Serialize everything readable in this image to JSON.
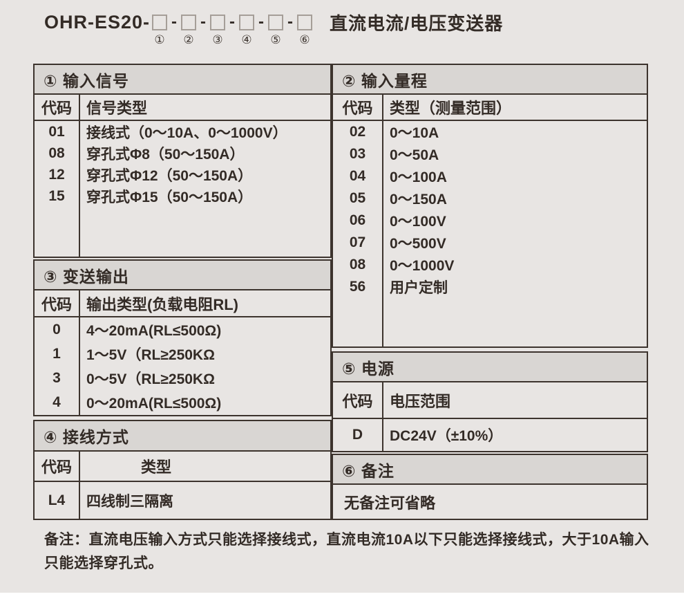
{
  "title": {
    "model_prefix": "OHR-ES20-",
    "separator": "-",
    "markers": [
      "①",
      "②",
      "③",
      "④",
      "⑤",
      "⑥"
    ],
    "product_name": "直流电流/电压变送器"
  },
  "sections": {
    "input_signal": {
      "title": "① 输入信号",
      "code_header": "代码",
      "type_header": "信号类型",
      "rows": [
        {
          "code": "01",
          "type": "接线式（0～10A、0～1000V）"
        },
        {
          "code": "08",
          "type": "穿孔式Φ8（50～150A）"
        },
        {
          "code": "12",
          "type": "穿孔式Φ12（50～150A）"
        },
        {
          "code": "15",
          "type": "穿孔式Φ15（50～150A）"
        }
      ]
    },
    "input_range": {
      "title": "② 输入量程",
      "code_header": "代码",
      "type_header": "类型（测量范围）",
      "rows": [
        {
          "code": "02",
          "type": "0～10A"
        },
        {
          "code": "03",
          "type": "0～50A"
        },
        {
          "code": "04",
          "type": "0～100A"
        },
        {
          "code": "05",
          "type": "0～150A"
        },
        {
          "code": "06",
          "type": "0～100V"
        },
        {
          "code": "07",
          "type": "0～500V"
        },
        {
          "code": "08",
          "type": "0～1000V"
        },
        {
          "code": "56",
          "type": "用户定制"
        }
      ]
    },
    "output": {
      "title": "③ 变送输出",
      "code_header": "代码",
      "type_header": "输出类型(负载电阻RL)",
      "rows": [
        {
          "code": "0",
          "type": "4～20mA(RL≤500Ω)"
        },
        {
          "code": "1",
          "type": "1～5V（RL≥250KΩ"
        },
        {
          "code": "3",
          "type": "0～5V（RL≥250KΩ"
        },
        {
          "code": "4",
          "type": "0～20mA(RL≤500Ω)"
        }
      ]
    },
    "wiring": {
      "title": "④ 接线方式",
      "code_header": "代码",
      "type_header": "类型",
      "rows": [
        {
          "code": "L4",
          "type": "四线制三隔离"
        }
      ]
    },
    "power": {
      "title": "⑤ 电源",
      "code_header": "代码",
      "type_header": "电压范围",
      "rows": [
        {
          "code": "D",
          "type": "DC24V（±10%）"
        }
      ]
    },
    "remark": {
      "title": "⑥ 备注",
      "text": "无备注可省略"
    }
  },
  "note": "备注：直流电压输入方式只能选择接线式，直流电流10A以下只能选择接线式，大于10A输入只能选择穿孔式。"
}
